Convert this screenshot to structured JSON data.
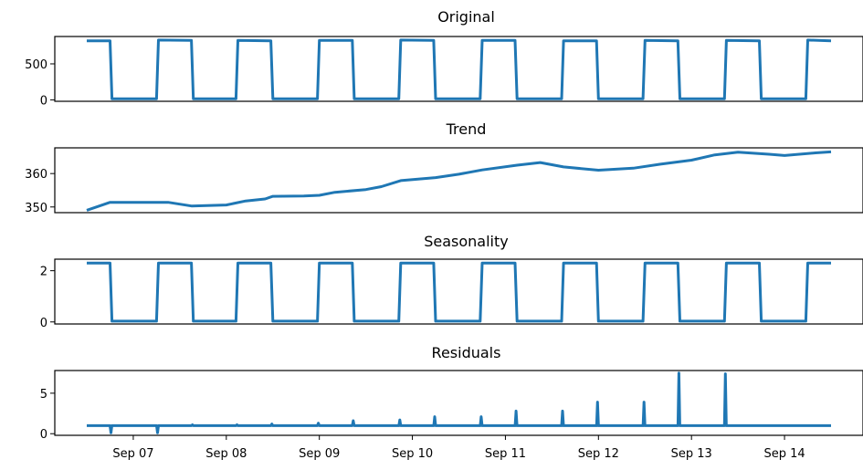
{
  "chart_data": [
    {
      "type": "line",
      "title": "Original",
      "ylim": [
        -20,
        880
      ],
      "yticks": [
        0,
        500
      ],
      "series_color": "#1f77b4",
      "start": "Sep 06 12:00",
      "end": "Sep 14 12:00",
      "points": [
        {
          "t": "Sep 06 12:00",
          "y": 820
        },
        {
          "t": "Sep 06 18:00",
          "y": 820
        },
        {
          "t": "Sep 06 18:30",
          "y": 15
        },
        {
          "t": "Sep 07 06:00",
          "y": 15
        },
        {
          "t": "Sep 07 06:30",
          "y": 830
        },
        {
          "t": "Sep 07 15:00",
          "y": 825
        },
        {
          "t": "Sep 07 15:30",
          "y": 15
        },
        {
          "t": "Sep 08 02:30",
          "y": 15
        },
        {
          "t": "Sep 08 03:00",
          "y": 825
        },
        {
          "t": "Sep 08 11:30",
          "y": 820
        },
        {
          "t": "Sep 08 12:00",
          "y": 15
        },
        {
          "t": "Sep 08 23:30",
          "y": 15
        },
        {
          "t": "Sep 09 00:00",
          "y": 825
        },
        {
          "t": "Sep 09 08:30",
          "y": 825
        },
        {
          "t": "Sep 09 09:00",
          "y": 15
        },
        {
          "t": "Sep 09 20:30",
          "y": 15
        },
        {
          "t": "Sep 09 21:00",
          "y": 830
        },
        {
          "t": "Sep 10 05:30",
          "y": 825
        },
        {
          "t": "Sep 10 06:00",
          "y": 15
        },
        {
          "t": "Sep 10 17:30",
          "y": 15
        },
        {
          "t": "Sep 10 18:00",
          "y": 825
        },
        {
          "t": "Sep 11 02:30",
          "y": 825
        },
        {
          "t": "Sep 11 03:00",
          "y": 15
        },
        {
          "t": "Sep 11 14:30",
          "y": 15
        },
        {
          "t": "Sep 11 15:00",
          "y": 820
        },
        {
          "t": "Sep 11 23:30",
          "y": 820
        },
        {
          "t": "Sep 12 00:00",
          "y": 15
        },
        {
          "t": "Sep 12 11:30",
          "y": 15
        },
        {
          "t": "Sep 12 12:00",
          "y": 825
        },
        {
          "t": "Sep 12 20:30",
          "y": 820
        },
        {
          "t": "Sep 12 21:00",
          "y": 15
        },
        {
          "t": "Sep 13 08:30",
          "y": 15
        },
        {
          "t": "Sep 13 09:00",
          "y": 825
        },
        {
          "t": "Sep 13 17:30",
          "y": 820
        },
        {
          "t": "Sep 13 18:00",
          "y": 15
        },
        {
          "t": "Sep 14 05:30",
          "y": 15
        },
        {
          "t": "Sep 14 06:00",
          "y": 830
        },
        {
          "t": "Sep 14 12:00",
          "y": 820
        }
      ]
    },
    {
      "type": "line",
      "title": "Trend",
      "ylim": [
        348.3,
        367.7
      ],
      "yticks": [
        350,
        360
      ],
      "series_color": "#1f77b4",
      "start": "Sep 06 12:00",
      "end": "Sep 14 12:00",
      "points": [
        {
          "t": "Sep 06 12:00",
          "y": 349
        },
        {
          "t": "Sep 06 18:00",
          "y": 351.4
        },
        {
          "t": "Sep 07 06:00",
          "y": 351.4
        },
        {
          "t": "Sep 07 09:00",
          "y": 351.4
        },
        {
          "t": "Sep 07 15:00",
          "y": 350.3
        },
        {
          "t": "Sep 07 19:00",
          "y": 350.4
        },
        {
          "t": "Sep 08 00:00",
          "y": 350.6
        },
        {
          "t": "Sep 08 05:00",
          "y": 351.8
        },
        {
          "t": "Sep 08 10:00",
          "y": 352.4
        },
        {
          "t": "Sep 08 12:00",
          "y": 353.2
        },
        {
          "t": "Sep 08 20:00",
          "y": 353.3
        },
        {
          "t": "Sep 09 00:00",
          "y": 353.5
        },
        {
          "t": "Sep 09 04:00",
          "y": 354.4
        },
        {
          "t": "Sep 09 12:00",
          "y": 355.2
        },
        {
          "t": "Sep 09 16:00",
          "y": 356.1
        },
        {
          "t": "Sep 09 21:00",
          "y": 357.9
        },
        {
          "t": "Sep 10 06:00",
          "y": 358.8
        },
        {
          "t": "Sep 10 12:00",
          "y": 359.8
        },
        {
          "t": "Sep 10 18:00",
          "y": 361.1
        },
        {
          "t": "Sep 11 03:00",
          "y": 362.5
        },
        {
          "t": "Sep 11 09:00",
          "y": 363.3
        },
        {
          "t": "Sep 11 15:00",
          "y": 362.0
        },
        {
          "t": "Sep 12 00:00",
          "y": 361.0
        },
        {
          "t": "Sep 12 09:00",
          "y": 361.6
        },
        {
          "t": "Sep 12 16:00",
          "y": 362.8
        },
        {
          "t": "Sep 13 00:00",
          "y": 364.0
        },
        {
          "t": "Sep 13 06:00",
          "y": 365.6
        },
        {
          "t": "Sep 13 12:00",
          "y": 366.4
        },
        {
          "t": "Sep 13 20:00",
          "y": 365.8
        },
        {
          "t": "Sep 14 00:00",
          "y": 365.4
        },
        {
          "t": "Sep 14 08:00",
          "y": 366.2
        },
        {
          "t": "Sep 14 12:00",
          "y": 366.5
        }
      ]
    },
    {
      "type": "line",
      "title": "Seasonality",
      "ylim": [
        -0.08,
        2.45
      ],
      "yticks": [
        0,
        2
      ],
      "series_color": "#1f77b4",
      "start": "Sep 06 12:00",
      "end": "Sep 14 12:00",
      "points": [
        {
          "t": "Sep 06 12:00",
          "y": 2.3
        },
        {
          "t": "Sep 06 18:00",
          "y": 2.3
        },
        {
          "t": "Sep 06 18:30",
          "y": 0.03
        },
        {
          "t": "Sep 07 06:00",
          "y": 0.03
        },
        {
          "t": "Sep 07 06:30",
          "y": 2.3
        },
        {
          "t": "Sep 07 15:00",
          "y": 2.3
        },
        {
          "t": "Sep 07 15:30",
          "y": 0.03
        },
        {
          "t": "Sep 08 02:30",
          "y": 0.03
        },
        {
          "t": "Sep 08 03:00",
          "y": 2.3
        },
        {
          "t": "Sep 08 11:30",
          "y": 2.3
        },
        {
          "t": "Sep 08 12:00",
          "y": 0.03
        },
        {
          "t": "Sep 08 23:30",
          "y": 0.03
        },
        {
          "t": "Sep 09 00:00",
          "y": 2.3
        },
        {
          "t": "Sep 09 08:30",
          "y": 2.3
        },
        {
          "t": "Sep 09 09:00",
          "y": 0.03
        },
        {
          "t": "Sep 09 20:30",
          "y": 0.03
        },
        {
          "t": "Sep 09 21:00",
          "y": 2.3
        },
        {
          "t": "Sep 10 05:30",
          "y": 2.3
        },
        {
          "t": "Sep 10 06:00",
          "y": 0.03
        },
        {
          "t": "Sep 10 17:30",
          "y": 0.03
        },
        {
          "t": "Sep 10 18:00",
          "y": 2.3
        },
        {
          "t": "Sep 11 02:30",
          "y": 2.3
        },
        {
          "t": "Sep 11 03:00",
          "y": 0.03
        },
        {
          "t": "Sep 11 14:30",
          "y": 0.03
        },
        {
          "t": "Sep 11 15:00",
          "y": 2.3
        },
        {
          "t": "Sep 11 23:30",
          "y": 2.3
        },
        {
          "t": "Sep 12 00:00",
          "y": 0.03
        },
        {
          "t": "Sep 12 11:30",
          "y": 0.03
        },
        {
          "t": "Sep 12 12:00",
          "y": 2.3
        },
        {
          "t": "Sep 12 20:30",
          "y": 2.3
        },
        {
          "t": "Sep 12 21:00",
          "y": 0.03
        },
        {
          "t": "Sep 13 08:30",
          "y": 0.03
        },
        {
          "t": "Sep 13 09:00",
          "y": 2.3
        },
        {
          "t": "Sep 13 17:30",
          "y": 2.3
        },
        {
          "t": "Sep 13 18:00",
          "y": 0.03
        },
        {
          "t": "Sep 14 05:30",
          "y": 0.03
        },
        {
          "t": "Sep 14 06:00",
          "y": 2.3
        },
        {
          "t": "Sep 14 12:00",
          "y": 2.3
        }
      ]
    },
    {
      "type": "line",
      "title": "Residuals",
      "ylim": [
        -0.2,
        7.8
      ],
      "yticks": [
        0,
        5
      ],
      "series_color": "#1f77b4",
      "start": "Sep 06 12:00",
      "end": "Sep 14 12:00",
      "baseline": 1.0,
      "spikes": [
        {
          "t": "Sep 06 18:15",
          "y": 0.1
        },
        {
          "t": "Sep 07 06:15",
          "y": 0.1
        },
        {
          "t": "Sep 07 15:15",
          "y": 1.1
        },
        {
          "t": "Sep 08 02:45",
          "y": 1.1
        },
        {
          "t": "Sep 08 11:45",
          "y": 1.2
        },
        {
          "t": "Sep 08 23:45",
          "y": 1.3
        },
        {
          "t": "Sep 09 08:45",
          "y": 1.6
        },
        {
          "t": "Sep 09 20:45",
          "y": 1.7
        },
        {
          "t": "Sep 10 05:45",
          "y": 2.1
        },
        {
          "t": "Sep 10 17:45",
          "y": 2.1
        },
        {
          "t": "Sep 11 02:45",
          "y": 2.8
        },
        {
          "t": "Sep 11 14:45",
          "y": 2.8
        },
        {
          "t": "Sep 11 23:45",
          "y": 3.9
        },
        {
          "t": "Sep 12 11:45",
          "y": 3.9
        },
        {
          "t": "Sep 12 20:45",
          "y": 7.5
        },
        {
          "t": "Sep 13 08:45",
          "y": 7.4
        }
      ],
      "xticks": [
        "Sep 07",
        "Sep 08",
        "Sep 09",
        "Sep 10",
        "Sep 11",
        "Sep 12",
        "Sep 13",
        "Sep 14"
      ]
    }
  ]
}
